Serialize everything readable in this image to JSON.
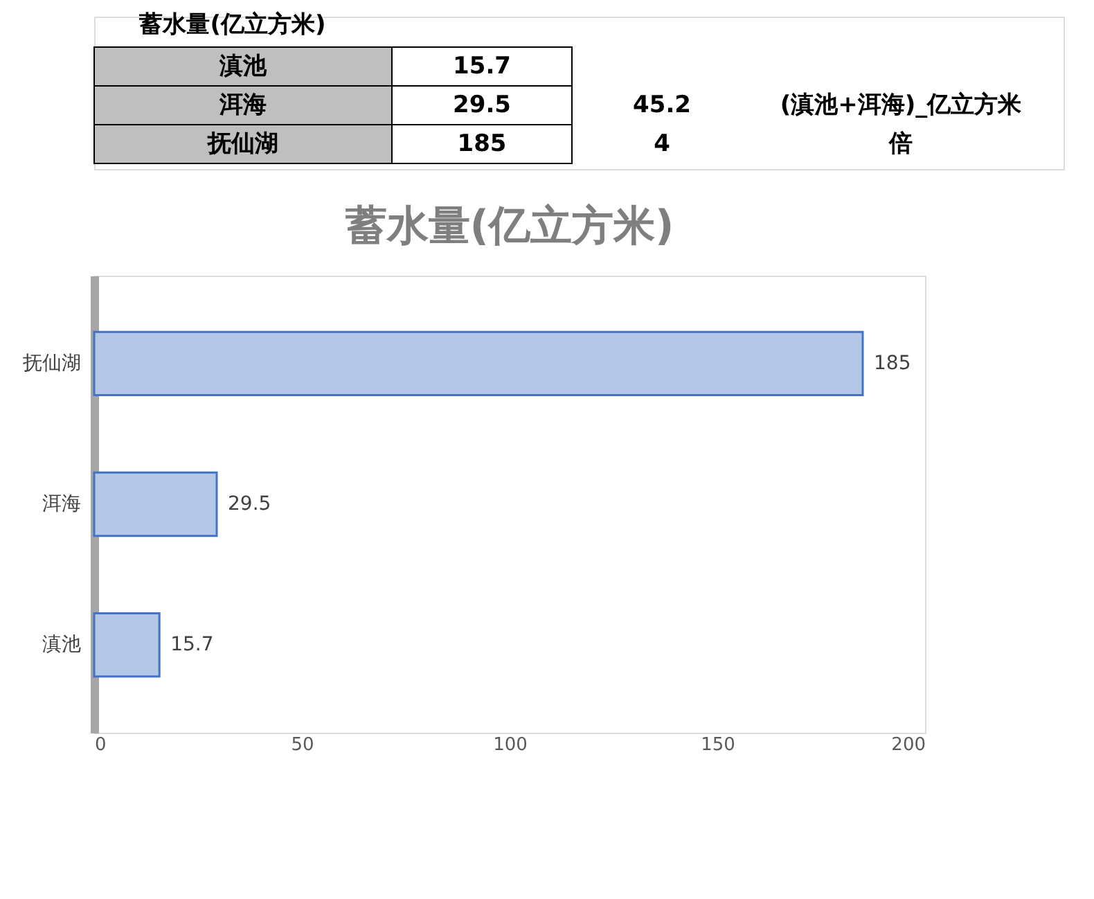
{
  "chart_data": {
    "type": "bar",
    "orientation": "horizontal",
    "title": "蓄水量(亿立方米)",
    "categories": [
      "抚仙湖",
      "洱海",
      "滇池"
    ],
    "values": [
      185,
      29.5,
      15.7
    ],
    "color": "#b4c7e7",
    "xlim": [
      0,
      200
    ],
    "xticks": [
      0,
      50,
      100,
      150,
      200
    ],
    "grid": false,
    "data_labels": true,
    "annotations": [
      "蓄水量(亿立方米)",
      "15.7",
      "29.5",
      "185",
      "45.2",
      "(滇池+洱海)_亿立方米",
      "4",
      "倍"
    ]
  }
}
